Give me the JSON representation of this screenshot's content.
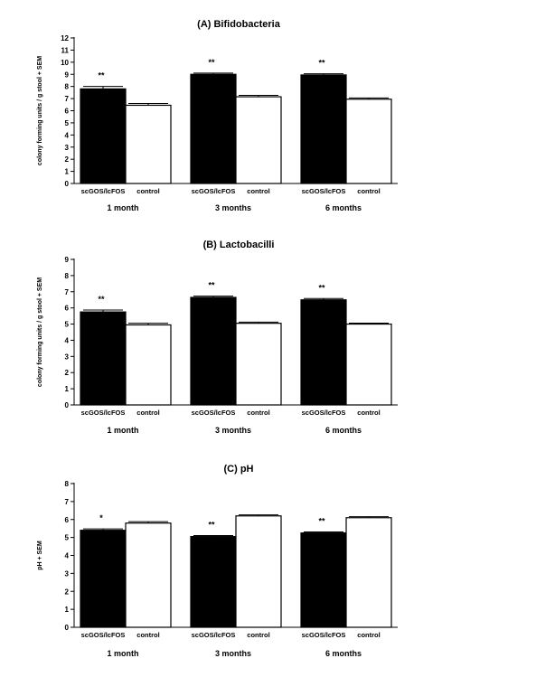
{
  "chart_data": [
    {
      "type": "bar",
      "title": "(A) Bifidobacteria",
      "ylabel": "colony forming units / g stool + SEM",
      "ylim": [
        0,
        12
      ],
      "yticks": [
        0,
        1,
        2,
        3,
        4,
        5,
        6,
        7,
        8,
        9,
        10,
        11,
        12
      ],
      "groups": [
        "1 month",
        "3 months",
        "6 months"
      ],
      "series": [
        {
          "name": "scGOS/lcFOS",
          "color": "#000000",
          "values": [
            7.8,
            9.0,
            8.95
          ],
          "sem": [
            0.2,
            0.1,
            0.1
          ],
          "significance": [
            "**",
            "**",
            "**"
          ]
        },
        {
          "name": "control",
          "color": "#ffffff",
          "values": [
            6.45,
            7.15,
            6.95
          ],
          "sem": [
            0.15,
            0.12,
            0.1
          ],
          "significance": [
            "",
            "",
            ""
          ]
        }
      ]
    },
    {
      "type": "bar",
      "title": "(B) Lactobacilli",
      "ylabel": "colony forming units / g stool + SEM",
      "ylim": [
        0,
        9
      ],
      "yticks": [
        0,
        1,
        2,
        3,
        4,
        5,
        6,
        7,
        8,
        9
      ],
      "groups": [
        "1 month",
        "3 months",
        "6 months"
      ],
      "series": [
        {
          "name": "scGOS/lcFOS",
          "color": "#000000",
          "values": [
            5.75,
            6.65,
            6.5
          ],
          "sem": [
            0.12,
            0.08,
            0.08
          ],
          "significance": [
            "**",
            "**",
            "**"
          ]
        },
        {
          "name": "control",
          "color": "#ffffff",
          "values": [
            4.95,
            5.05,
            5.0
          ],
          "sem": [
            0.1,
            0.07,
            0.06
          ],
          "significance": [
            "",
            "",
            ""
          ]
        }
      ]
    },
    {
      "type": "bar",
      "title": "(C) pH",
      "ylabel": "pH + SEM",
      "ylim": [
        0,
        8
      ],
      "yticks": [
        0,
        1,
        2,
        3,
        4,
        5,
        6,
        7,
        8
      ],
      "groups": [
        "1 month",
        "3 months",
        "6 months"
      ],
      "series": [
        {
          "name": "scGOS/lcFOS",
          "color": "#000000",
          "values": [
            5.4,
            5.05,
            5.25
          ],
          "sem": [
            0.08,
            0.06,
            0.06
          ],
          "significance": [
            "*",
            "**",
            "**"
          ]
        },
        {
          "name": "control",
          "color": "#ffffff",
          "values": [
            5.8,
            6.2,
            6.1
          ],
          "sem": [
            0.08,
            0.06,
            0.06
          ],
          "significance": [
            "",
            "",
            ""
          ]
        }
      ]
    }
  ]
}
